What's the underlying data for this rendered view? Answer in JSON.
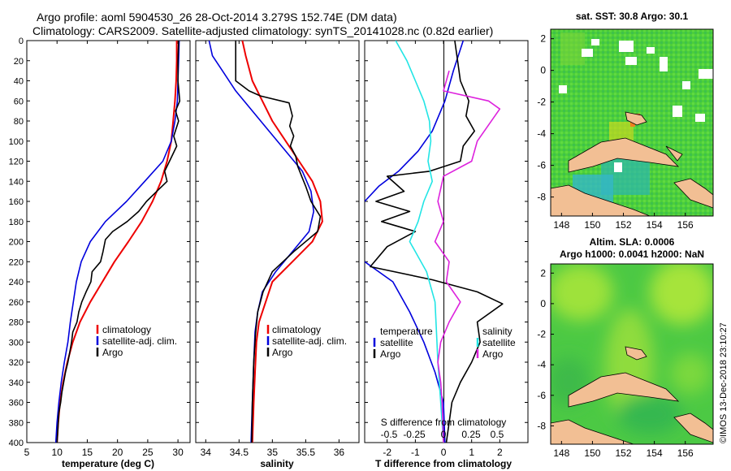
{
  "header": {
    "title_line1": "Argo profile: aoml 5904530_26 28-Oct-2014 3.279S 152.74E (DM data)",
    "title_line2": "Climatology: CARS2009. Satellite-adjusted climatology: synTS_20141028.nc (0.82d earlier)"
  },
  "colors": {
    "climatology": "#ee0000",
    "satellite": "#0000dd",
    "argo": "#000000",
    "cyan": "#22e5e5",
    "magenta": "#dd22dd"
  },
  "depth_ticks": [
    "0",
    "20",
    "40",
    "60",
    "80",
    "100",
    "120",
    "140",
    "160",
    "180",
    "200",
    "220",
    "240",
    "260",
    "280",
    "300",
    "320",
    "340",
    "360",
    "380",
    "400"
  ],
  "chart_data": [
    {
      "type": "line",
      "id": "temperature",
      "xlabel": "temperature (deg C)",
      "ylabel": "depth",
      "xlim": [
        5,
        32
      ],
      "ylim": [
        400,
        0
      ],
      "xticks": [
        5,
        10,
        15,
        20,
        25,
        30
      ],
      "xtick_labels": [
        "5",
        "10",
        "15",
        "20",
        "25",
        "30"
      ],
      "legend": [
        "climatology",
        "satellite-adj. clim.",
        "Argo"
      ],
      "series": [
        {
          "name": "climatology",
          "color": "#ee0000",
          "points": [
            [
              29.8,
              0
            ],
            [
              29.8,
              20
            ],
            [
              29.7,
              40
            ],
            [
              29.5,
              60
            ],
            [
              29.2,
              80
            ],
            [
              28.9,
              100
            ],
            [
              28.2,
              120
            ],
            [
              27.2,
              140
            ],
            [
              25.8,
              160
            ],
            [
              24.0,
              180
            ],
            [
              21.8,
              200
            ],
            [
              19.5,
              220
            ],
            [
              17.5,
              240
            ],
            [
              15.5,
              260
            ],
            [
              13.8,
              280
            ],
            [
              12.6,
              300
            ],
            [
              11.7,
              320
            ],
            [
              11.0,
              340
            ],
            [
              10.5,
              360
            ],
            [
              10.2,
              380
            ],
            [
              10.0,
              400
            ]
          ]
        },
        {
          "name": "satellite-adj. clim.",
          "color": "#0000dd",
          "points": [
            [
              30.2,
              0
            ],
            [
              30.1,
              20
            ],
            [
              30.0,
              40
            ],
            [
              29.9,
              60
            ],
            [
              29.5,
              80
            ],
            [
              28.9,
              100
            ],
            [
              27.5,
              120
            ],
            [
              24.5,
              140
            ],
            [
              21.5,
              160
            ],
            [
              18.0,
              180
            ],
            [
              15.5,
              200
            ],
            [
              14.0,
              220
            ],
            [
              13.2,
              240
            ],
            [
              12.7,
              260
            ],
            [
              12.2,
              280
            ],
            [
              11.8,
              300
            ],
            [
              11.2,
              320
            ],
            [
              10.7,
              340
            ],
            [
              10.3,
              360
            ],
            [
              10.0,
              380
            ],
            [
              9.8,
              400
            ]
          ]
        },
        {
          "name": "Argo",
          "color": "#000000",
          "points": [
            [
              30.1,
              0
            ],
            [
              30.0,
              20
            ],
            [
              30.0,
              40
            ],
            [
              30.3,
              60
            ],
            [
              29.6,
              70
            ],
            [
              30.1,
              80
            ],
            [
              29.3,
              95
            ],
            [
              29.8,
              105
            ],
            [
              28.6,
              120
            ],
            [
              27.8,
              130
            ],
            [
              28.2,
              140
            ],
            [
              26.5,
              150
            ],
            [
              24.8,
              160
            ],
            [
              23.5,
              170
            ],
            [
              21.6,
              180
            ],
            [
              19.2,
              190
            ],
            [
              18.0,
              198
            ],
            [
              17.6,
              210
            ],
            [
              17.2,
              220
            ],
            [
              15.8,
              230
            ],
            [
              15.6,
              240
            ],
            [
              14.8,
              250
            ],
            [
              14.1,
              260
            ],
            [
              13.6,
              270
            ],
            [
              13.3,
              280
            ],
            [
              12.6,
              290
            ],
            [
              12.4,
              300
            ],
            [
              12.1,
              310
            ],
            [
              11.8,
              320
            ],
            [
              11.4,
              330
            ],
            [
              11.1,
              340
            ],
            [
              10.8,
              350
            ],
            [
              10.6,
              360
            ],
            [
              10.3,
              370
            ],
            [
              10.2,
              380
            ],
            [
              10.1,
              390
            ],
            [
              10.0,
              400
            ]
          ]
        }
      ]
    },
    {
      "type": "line",
      "id": "salinity",
      "xlabel": "salinity",
      "ylabel": "depth",
      "xlim": [
        33.85,
        36.3
      ],
      "ylim": [
        400,
        0
      ],
      "xticks": [
        34,
        34.5,
        35,
        35.5,
        36
      ],
      "xtick_labels": [
        "34",
        "34.5",
        "35",
        "35.5",
        "36"
      ],
      "legend": [
        "climatology",
        "satellite-adj. clim.",
        "Argo"
      ],
      "series": [
        {
          "name": "climatology",
          "color": "#ee0000",
          "points": [
            [
              34.55,
              0
            ],
            [
              34.6,
              15
            ],
            [
              34.7,
              40
            ],
            [
              34.85,
              60
            ],
            [
              35.0,
              80
            ],
            [
              35.2,
              100
            ],
            [
              35.4,
              120
            ],
            [
              35.6,
              140
            ],
            [
              35.72,
              160
            ],
            [
              35.75,
              180
            ],
            [
              35.6,
              200
            ],
            [
              35.3,
              220
            ],
            [
              35.0,
              240
            ],
            [
              34.9,
              260
            ],
            [
              34.8,
              280
            ],
            [
              34.76,
              300
            ],
            [
              34.74,
              330
            ],
            [
              34.72,
              360
            ],
            [
              34.7,
              400
            ]
          ]
        },
        {
          "name": "satellite-adj. clim.",
          "color": "#0000dd",
          "points": [
            [
              34.05,
              0
            ],
            [
              34.1,
              15
            ],
            [
              34.25,
              30
            ],
            [
              34.45,
              50
            ],
            [
              34.7,
              70
            ],
            [
              34.95,
              90
            ],
            [
              35.2,
              110
            ],
            [
              35.45,
              130
            ],
            [
              35.58,
              150
            ],
            [
              35.62,
              170
            ],
            [
              35.55,
              190
            ],
            [
              35.3,
              210
            ],
            [
              35.05,
              230
            ],
            [
              34.85,
              250
            ],
            [
              34.78,
              270
            ],
            [
              34.74,
              290
            ],
            [
              34.72,
              320
            ],
            [
              34.7,
              360
            ],
            [
              34.68,
              400
            ]
          ]
        },
        {
          "name": "Argo",
          "color": "#000000",
          "points": [
            [
              34.45,
              0
            ],
            [
              34.45,
              40
            ],
            [
              34.65,
              50
            ],
            [
              34.82,
              55
            ],
            [
              35.25,
              62
            ],
            [
              35.3,
              75
            ],
            [
              35.26,
              85
            ],
            [
              35.32,
              95
            ],
            [
              35.27,
              105
            ],
            [
              35.35,
              115
            ],
            [
              35.38,
              125
            ],
            [
              35.44,
              135
            ],
            [
              35.5,
              145
            ],
            [
              35.58,
              160
            ],
            [
              35.72,
              175
            ],
            [
              35.68,
              190
            ],
            [
              35.32,
              210
            ],
            [
              35.0,
              230
            ],
            [
              34.86,
              250
            ],
            [
              34.78,
              270
            ],
            [
              34.75,
              290
            ],
            [
              34.72,
              320
            ],
            [
              34.7,
              360
            ],
            [
              34.69,
              400
            ]
          ]
        }
      ]
    },
    {
      "type": "line",
      "id": "difference",
      "xlabel": "T difference from climatology",
      "ylabel": "depth",
      "xlim": [
        -2.8,
        3
      ],
      "ylim": [
        400,
        0
      ],
      "xticks": [
        -2,
        -1,
        0,
        1,
        2
      ],
      "xtick_labels": [
        "-2",
        "-1",
        "0",
        "1",
        "2"
      ],
      "top_axis_label": "S difference from climatology",
      "top_axis_ticks": [
        "-0.5",
        "-0.25",
        "0",
        "0.25",
        "0.5"
      ],
      "legend_temperature_title": "temperature",
      "legend_salinity_title": "salinity",
      "legend": [
        "satellite",
        "Argo",
        "satellite",
        "Argo"
      ],
      "series": [
        {
          "name": "temperature satellite",
          "color": "#0000dd",
          "points": [
            [
              0.7,
              0
            ],
            [
              0.35,
              30
            ],
            [
              0.05,
              60
            ],
            [
              -0.4,
              90
            ],
            [
              -0.9,
              110
            ],
            [
              -1.6,
              130
            ],
            [
              -2.3,
              145
            ],
            [
              -2.8,
              160
            ]
          ]
        },
        {
          "name": "temperature satellite (deep)",
          "color": "#0000dd",
          "points": [
            [
              -2.8,
              220
            ],
            [
              -1.8,
              240
            ],
            [
              -1.2,
              270
            ],
            [
              -0.7,
              300
            ],
            [
              -0.3,
              330
            ],
            [
              0.0,
              360
            ],
            [
              0.05,
              400
            ]
          ]
        },
        {
          "name": "temperature Argo",
          "color": "#000000",
          "points": [
            [
              0.4,
              0
            ],
            [
              0.5,
              20
            ],
            [
              0.6,
              40
            ],
            [
              0.9,
              60
            ],
            [
              0.8,
              75
            ],
            [
              1.1,
              90
            ],
            [
              0.7,
              105
            ],
            [
              0.6,
              120
            ],
            [
              -0.5,
              130
            ],
            [
              -2.0,
              135
            ],
            [
              -1.4,
              150
            ],
            [
              -2.4,
              160
            ],
            [
              -1.2,
              170
            ],
            [
              -2.2,
              180
            ],
            [
              -1.0,
              190
            ],
            [
              -2.0,
              205
            ],
            [
              -2.6,
              225
            ],
            [
              -0.4,
              238
            ],
            [
              1.2,
              250
            ],
            [
              2.1,
              262
            ],
            [
              1.2,
              280
            ],
            [
              1.3,
              300
            ],
            [
              1.0,
              320
            ],
            [
              0.6,
              340
            ],
            [
              0.3,
              360
            ],
            [
              0.2,
              380
            ],
            [
              0.1,
              400
            ]
          ]
        },
        {
          "name": "salinity satellite",
          "color": "#22e5e5",
          "points": [
            [
              -1.7,
              0
            ],
            [
              -1.3,
              20
            ],
            [
              -1.0,
              40
            ],
            [
              -0.7,
              60
            ],
            [
              -0.5,
              80
            ],
            [
              -0.45,
              100
            ],
            [
              -0.55,
              120
            ],
            [
              -0.4,
              140
            ],
            [
              -0.7,
              160
            ],
            [
              -0.9,
              180
            ],
            [
              -1.2,
              200
            ],
            [
              -0.6,
              230
            ],
            [
              -0.3,
              260
            ],
            [
              -0.25,
              290
            ],
            [
              -0.2,
              320
            ],
            [
              -0.1,
              360
            ],
            [
              0.0,
              400
            ]
          ]
        },
        {
          "name": "salinity Argo",
          "color": "#dd22dd",
          "points": [
            [
              0.2,
              30
            ],
            [
              0.0,
              50
            ],
            [
              1.6,
              60
            ],
            [
              2.0,
              68
            ],
            [
              1.2,
              100
            ],
            [
              1.0,
              120
            ],
            [
              0.0,
              135
            ],
            [
              -0.2,
              160
            ],
            [
              0.0,
              180
            ],
            [
              -0.3,
              200
            ],
            [
              0.2,
              220
            ],
            [
              0.1,
              240
            ],
            [
              0.6,
              260
            ],
            [
              0.2,
              280
            ],
            [
              -0.1,
              300
            ],
            [
              -0.2,
              320
            ],
            [
              -0.1,
              340
            ],
            [
              -0.05,
              360
            ],
            [
              0.0,
              400
            ]
          ]
        }
      ]
    }
  ],
  "map_top": {
    "title": "sat. SST: 30.8 Argo: 30.1",
    "xtick_labels": [
      "148",
      "150",
      "152",
      "154",
      "156"
    ],
    "ytick_labels": [
      "2",
      "0",
      "-2",
      "-4",
      "-6",
      "-8"
    ]
  },
  "map_bottom": {
    "title_line1": "Altim. SLA: 0.0006",
    "title_line2": "Argo h1000: 0.0041 h2000: NaN",
    "xtick_labels": [
      "148",
      "150",
      "152",
      "154",
      "156"
    ],
    "ytick_labels": [
      "2",
      "0",
      "-2",
      "-4",
      "-6",
      "-8"
    ]
  },
  "watermark": "©IMOS 13-Dec-2018 23:10:27"
}
